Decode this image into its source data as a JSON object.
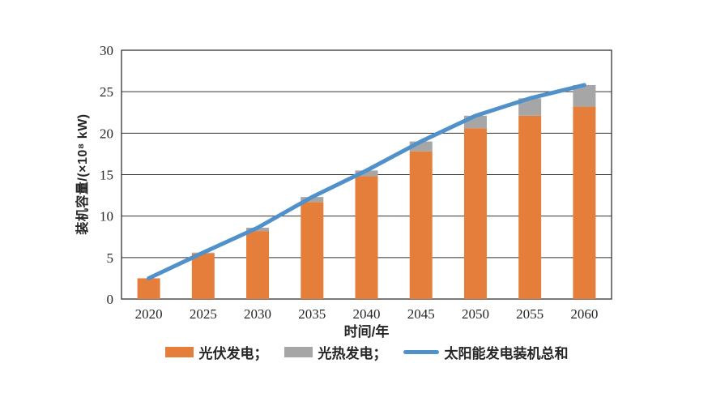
{
  "page": {
    "background": "#ffffff",
    "text_color": "#262626",
    "gridline_color": "#333333"
  },
  "chart_data": {
    "type": "combo-stacked-bar-line",
    "title": "",
    "categories": [
      "2020",
      "2025",
      "2030",
      "2035",
      "2040",
      "2045",
      "2050",
      "2055",
      "2060"
    ],
    "series": [
      {
        "name": "光伏发电",
        "chart": "bar",
        "stacked": true,
        "color": "#E67E3B",
        "values": [
          2.5,
          5.5,
          8.2,
          11.7,
          14.8,
          17.8,
          20.6,
          22.1,
          23.2
        ]
      },
      {
        "name": "光热发电",
        "chart": "bar",
        "stacked": true,
        "color": "#A6A6A6",
        "values": [
          0,
          0.1,
          0.4,
          0.6,
          0.7,
          1.2,
          1.5,
          2.1,
          2.6
        ]
      },
      {
        "name": "太阳能发电装机总和",
        "chart": "line",
        "color": "#5191CA",
        "values": [
          2.5,
          5.6,
          8.6,
          12.3,
          15.5,
          19.0,
          22.1,
          24.2,
          25.8
        ]
      }
    ],
    "xlabel": "时间/年",
    "ylabel": "装机容量/(×10⁸ kW)",
    "ylim": [
      0,
      30
    ],
    "ytick_step": 5,
    "yticks": [
      "0",
      "5",
      "10",
      "15",
      "20",
      "25",
      "30"
    ],
    "grid": "horizontal",
    "legend_position": "bottom"
  },
  "legend": {
    "items": [
      {
        "swatch": "rect",
        "color": "#E67E3B",
        "label": "光伏发电；"
      },
      {
        "swatch": "rect",
        "color": "#A6A6A6",
        "label": "光热发电；"
      },
      {
        "swatch": "line",
        "color": "#5191CA",
        "label": "太阳能发电装机总和"
      }
    ]
  }
}
